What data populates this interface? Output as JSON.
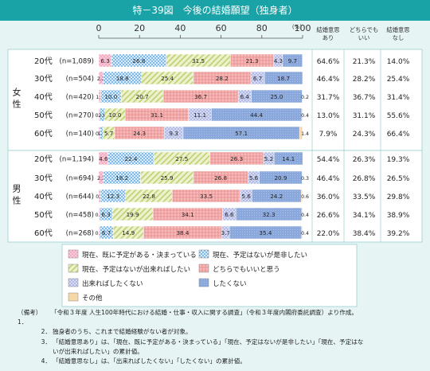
{
  "title": "特－39図　今後の結婚願望（独身者）",
  "chart_data": {
    "type": "bar",
    "stacked": true,
    "orientation": "horizontal",
    "xlim": [
      0,
      100
    ],
    "xticks": [
      "0",
      "20",
      "40",
      "60",
      "80",
      "100"
    ],
    "unit_label": "(%)",
    "summary_headers": [
      [
        "結婚意思",
        "あり"
      ],
      [
        "どちらでも",
        "いい"
      ],
      [
        "結婚意思",
        "なし"
      ]
    ],
    "groups": [
      {
        "name": "女性",
        "rows": [
          {
            "age": "20代",
            "n": "(n=1,089)",
            "values": [
              6.3,
              26.8,
              31.5,
              21.3,
              4.3,
              9.7,
              0
            ],
            "labels": [
              "6.3",
              "26.8",
              "31.5",
              "21.3",
              "4.3",
              "9.7",
              ""
            ],
            "summary": [
              "64.6%",
              "21.3%",
              "14.0%"
            ]
          },
          {
            "age": "30代",
            "n": "(n=504)",
            "values": [
              2.2,
              18.8,
              25.4,
              28.2,
              6.7,
              18.7,
              0
            ],
            "labels": [
              "2.2",
              "18.8",
              "25.4",
              "28.2",
              "6.7",
              "18.7",
              ""
            ],
            "summary": [
              "46.4%",
              "28.2%",
              "25.4%"
            ]
          },
          {
            "age": "40代",
            "n": "(n=420)",
            "values": [
              1.0,
              10.0,
              20.7,
              36.7,
              6.4,
              25.0,
              0.2
            ],
            "labels": [
              "1.0",
              "10.0",
              "20.7",
              "36.7",
              "6.4",
              "25.0",
              "0.2"
            ],
            "summary": [
              "31.7%",
              "36.7%",
              "31.4%"
            ]
          },
          {
            "age": "50代",
            "n": "(n=270)",
            "values": [
              0.4,
              2.6,
              10.0,
              31.1,
              11.1,
              44.4,
              0.4
            ],
            "labels": [
              "0.4",
              "2.6",
              "10.0",
              "31.1",
              "11.1",
              "44.4",
              "0.4"
            ],
            "summary": [
              "13.0%",
              "31.1%",
              "55.6%"
            ]
          },
          {
            "age": "60代",
            "n": "(n=140)",
            "values": [
              0.7,
              1.4,
              5.7,
              24.3,
              9.3,
              57.1,
              1.4
            ],
            "labels": [
              "0.7",
              "1.4",
              "5.7",
              "24.3",
              "9.3",
              "57.1",
              "1.4"
            ],
            "summary": [
              "7.9%",
              "24.3%",
              "66.4%"
            ]
          }
        ]
      },
      {
        "name": "男性",
        "rows": [
          {
            "age": "20代",
            "n": "(n=1,194)",
            "values": [
              4.6,
              22.4,
              27.5,
              26.3,
              5.2,
              14.1,
              0
            ],
            "labels": [
              "4.6",
              "22.4",
              "27.5",
              "26.3",
              "5.2",
              "14.1",
              ""
            ],
            "summary": [
              "54.4%",
              "26.3%",
              "19.3%"
            ]
          },
          {
            "age": "30代",
            "n": "(n=694)",
            "values": [
              2.3,
              18.2,
              25.9,
              26.8,
              5.6,
              20.9,
              0.3
            ],
            "labels": [
              "2.3",
              "18.2",
              "25.9",
              "26.8",
              "5.6",
              "20.9",
              "0.3"
            ],
            "summary": [
              "46.4%",
              "26.8%",
              "26.5%"
            ]
          },
          {
            "age": "40代",
            "n": "(n=644)",
            "values": [
              0.9,
              12.3,
              22.8,
              33.5,
              5.6,
              24.2,
              0.6
            ],
            "labels": [
              "0.9",
              "12.3",
              "22.8",
              "33.5",
              "5.6",
              "24.2",
              "0.6"
            ],
            "summary": [
              "36.0%",
              "33.5%",
              "29.8%"
            ]
          },
          {
            "age": "50代",
            "n": "(n=458)",
            "values": [
              0.4,
              6.3,
              19.9,
              34.1,
              6.6,
              32.3,
              0.4
            ],
            "labels": [
              "0.4",
              "6.3",
              "19.9",
              "34.1",
              "6.6",
              "32.3",
              "0.4"
            ],
            "summary": [
              "26.6%",
              "34.1%",
              "38.9%"
            ]
          },
          {
            "age": "60代",
            "n": "(n=268)",
            "values": [
              0.4,
              6.7,
              14.9,
              38.4,
              3.7,
              35.4,
              0.4
            ],
            "labels": [
              "0.4",
              "6.7",
              "14.9",
              "38.4",
              "3.7",
              "35.4",
              "0.4"
            ],
            "summary": [
              "22.0%",
              "38.4%",
              "39.2%"
            ]
          }
        ]
      }
    ],
    "legend": [
      "現在、既に予定がある・決まっている",
      "現在、予定はないが是非したい",
      "現在、予定はないが出来ればしたい",
      "どちらでもいいと思う",
      "出来ればしたくない",
      "したくない",
      "その他"
    ],
    "colors": [
      "#f2a0b8",
      "#8fc4ea",
      "#d6e0a0",
      "#f2a2a2",
      "#bcc4ec",
      "#8aa8dc",
      "#f2d098"
    ]
  },
  "notes": [
    {
      "num": "（備考）1．",
      "text": "「令和３年度 人生100年時代における結婚・仕事・収入に関する調査」（令和３年度内閣府委託調査）より作成。"
    },
    {
      "num": "2．",
      "text": "独身者のうち、これまで結婚経験がない者が対象。"
    },
    {
      "num": "3．",
      "text": "「結婚意思あり」は、「現在、既に予定がある・決まっている」「現在、予定はないが是非したい」「現在、予定はな"
    },
    {
      "num": "",
      "text": "いが出来ればしたい」の累計値。"
    },
    {
      "num": "4．",
      "text": "「結婚意思なし」は、「出来ればしたくない」「したくない」の累計値。"
    }
  ]
}
